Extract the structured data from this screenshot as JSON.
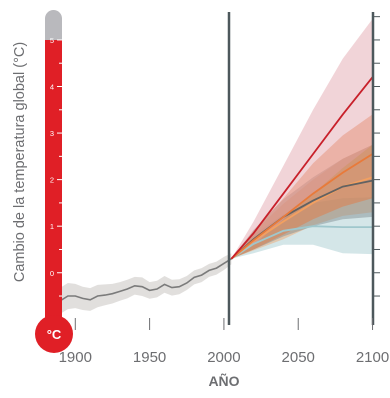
{
  "chart_data": {
    "type": "line",
    "ylabel": "Cambio de la temperatura global (°C)",
    "xlabel": "AÑO",
    "unit_badge": "°C",
    "x_ticks": [
      1900,
      1950,
      2000,
      2050,
      2100
    ],
    "y_ticks": [
      0,
      1,
      2,
      3,
      4,
      5
    ],
    "xlim": [
      1885,
      2103
    ],
    "ylim": [
      -0.8,
      5.6
    ],
    "thermometer_scale": "0–5 °C",
    "grid": false,
    "vertical_markers": [
      2005
    ],
    "historical": {
      "x": [
        1885,
        1890,
        1895,
        1900,
        1905,
        1910,
        1915,
        1920,
        1925,
        1930,
        1935,
        1940,
        1945,
        1950,
        1955,
        1960,
        1965,
        1970,
        1975,
        1980,
        1985,
        1990,
        1995,
        2000,
        2005
      ],
      "y": [
        -0.58,
        -0.6,
        -0.5,
        -0.5,
        -0.55,
        -0.58,
        -0.5,
        -0.48,
        -0.45,
        -0.4,
        -0.35,
        -0.28,
        -0.3,
        -0.38,
        -0.35,
        -0.25,
        -0.32,
        -0.3,
        -0.22,
        -0.1,
        -0.05,
        0.05,
        0.1,
        0.2,
        0.3
      ],
      "lower": [
        -0.85,
        -0.88,
        -0.78,
        -0.76,
        -0.8,
        -0.82,
        -0.74,
        -0.7,
        -0.66,
        -0.6,
        -0.55,
        -0.47,
        -0.5,
        -0.56,
        -0.53,
        -0.43,
        -0.49,
        -0.46,
        -0.37,
        -0.25,
        -0.2,
        -0.09,
        -0.04,
        0.06,
        0.18
      ],
      "upper": [
        -0.3,
        -0.32,
        -0.22,
        -0.24,
        -0.3,
        -0.33,
        -0.26,
        -0.25,
        -0.24,
        -0.2,
        -0.15,
        -0.09,
        -0.1,
        -0.2,
        -0.17,
        -0.07,
        -0.15,
        -0.14,
        -0.07,
        0.05,
        0.1,
        0.19,
        0.24,
        0.34,
        0.42
      ],
      "color": "#7b7b7b",
      "band_color": "#c9c5c1"
    },
    "series": [
      {
        "color": "#9fc7cc",
        "x": [
          2005,
          2020,
          2040,
          2060,
          2080,
          2100
        ],
        "y": [
          0.3,
          0.62,
          0.9,
          1.0,
          0.98,
          0.98
        ],
        "lower": [
          0.3,
          0.42,
          0.6,
          0.6,
          0.42,
          0.4
        ],
        "upper": [
          0.3,
          0.82,
          1.25,
          1.5,
          1.6,
          1.62
        ],
        "band_color": "#9fc7cc"
      },
      {
        "color": "#f3a060",
        "x": [
          2005,
          2020,
          2040,
          2060,
          2080,
          2100
        ],
        "y": [
          0.3,
          0.68,
          1.1,
          1.5,
          1.85,
          2.05
        ],
        "lower": [
          0.3,
          0.48,
          0.72,
          1.02,
          1.22,
          1.3
        ],
        "upper": [
          0.3,
          0.88,
          1.48,
          2.0,
          2.45,
          2.75
        ],
        "band_color": "#f2a46a"
      },
      {
        "color": "#626262",
        "x": [
          2005,
          2020,
          2040,
          2060,
          2080,
          2100
        ],
        "y": [
          0.3,
          0.72,
          1.2,
          1.55,
          1.85,
          1.98
        ],
        "lower": [
          0.3,
          0.5,
          0.78,
          1.0,
          1.15,
          1.2
        ],
        "upper": [
          0.3,
          0.92,
          1.58,
          2.05,
          2.45,
          2.75
        ],
        "band_color": "#7d8a8f"
      },
      {
        "color": "#e87a3a",
        "x": [
          2005,
          2020,
          2040,
          2060,
          2080,
          2100
        ],
        "y": [
          0.3,
          0.7,
          1.2,
          1.7,
          2.15,
          2.55
        ],
        "lower": [
          0.3,
          0.5,
          0.82,
          1.15,
          1.42,
          1.6
        ],
        "upper": [
          0.3,
          0.9,
          1.6,
          2.35,
          2.95,
          3.4
        ],
        "band_color": "#e8753a"
      },
      {
        "color": "#c8202a",
        "x": [
          2005,
          2020,
          2040,
          2060,
          2080,
          2100
        ],
        "y": [
          0.3,
          0.85,
          1.7,
          2.55,
          3.4,
          4.2
        ],
        "lower": [
          0.3,
          0.6,
          1.15,
          1.7,
          2.25,
          2.75
        ],
        "upper": [
          0.3,
          1.1,
          2.3,
          3.5,
          4.6,
          5.45
        ],
        "band_color": "#e0a0a8"
      }
    ]
  }
}
